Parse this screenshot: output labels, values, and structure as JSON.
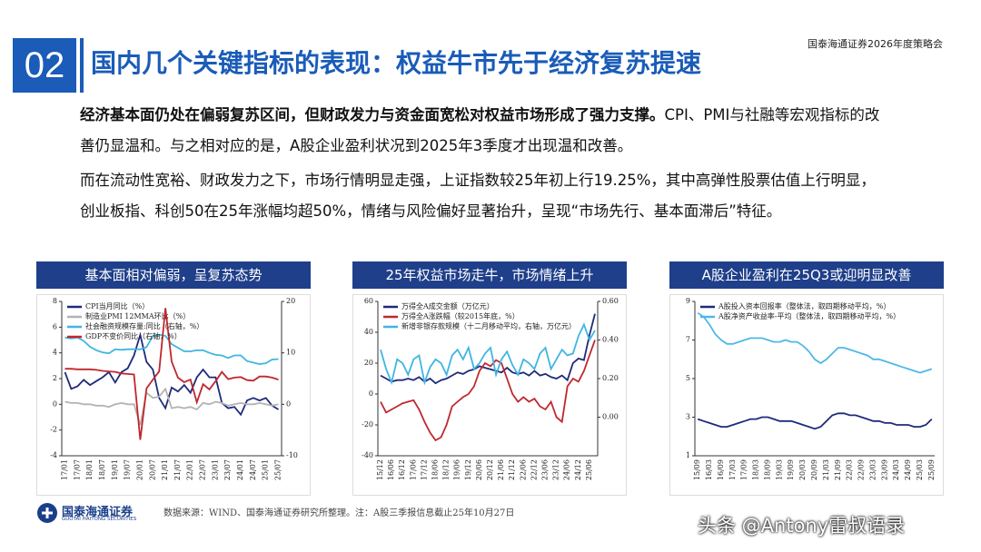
{
  "header": {
    "number": "02",
    "title": "国内几个关键指标的表现：权益牛市先于经济复苏提速",
    "event": "国泰海通证券2026年度策略会"
  },
  "body": {
    "paragraphs": [
      {
        "bold": "经济基本面仍处在偏弱复苏区间，但财政发力与资金面宽松对权益市场形成了强力支撑。",
        "text": "CPI、PMI与社融等宏观指标的改善仍显温和。与之相对应的是，A股企业盈利状况到2025年3季度才出现温和改善。"
      },
      {
        "text": "而在流动性宽裕、财政发力之下，市场行情明显走强，上证指数较25年初上行19.25%，其中高弹性股票估值上行明显，创业板指、科创50在25年涨幅均超50%，情绪与风险偏好显著抬升，呈现“市场先行、基本面滞后”特征。"
      }
    ]
  },
  "chart_data": [
    {
      "type": "line",
      "title": "基本面相对偏弱，呈复苏态势",
      "categories": [
        "17/01",
        null,
        "17/07",
        null,
        "18/01",
        null,
        "18/07",
        null,
        "19/01",
        null,
        "19/07",
        null,
        "20/01",
        null,
        "20/07",
        null,
        "21/01",
        null,
        "21/07",
        null,
        "22/01",
        null,
        "22/07",
        null,
        "23/01",
        null,
        "23/07",
        null,
        "24/01",
        null,
        "24/07",
        null,
        "25/01",
        null,
        "25/07"
      ],
      "series": [
        {
          "name": "CPI当月同比（%）",
          "color": "#1f2a7a",
          "values": [
            2.5,
            1.2,
            1.4,
            1.9,
            1.5,
            1.8,
            2.1,
            2.5,
            1.7,
            2.5,
            2.8,
            3.8,
            5.4,
            3.3,
            2.7,
            0.5,
            -0.3,
            1.3,
            1.0,
            1.5,
            0.9,
            2.1,
            2.7,
            2.1,
            2.1,
            0.1,
            -0.3,
            -0.2,
            -0.8,
            0.3,
            0.5,
            0.3,
            0.5,
            -0.1,
            -0.4
          ]
        },
        {
          "name": "制造业PMI 12MMA环比（%）",
          "color": "#b3b3b3",
          "values": [
            0.2,
            0.1,
            0.1,
            0,
            0,
            -0.1,
            -0.1,
            -0.2,
            0,
            0.1,
            0,
            0,
            -1.6,
            0.9,
            0.5,
            0.6,
            1.2,
            -0.3,
            -0.2,
            -0.3,
            -0.2,
            -0.4,
            0.1,
            0,
            0.2,
            0.1,
            -0.1,
            0,
            0.1,
            0,
            0,
            0.1,
            0,
            -0.1,
            0
          ]
        },
        {
          "name": "社会融资规模存量:同比（右轴，%）",
          "color": "#3fb6e0",
          "axis": "y2",
          "values": [
            13.0,
            12.8,
            13.0,
            12.3,
            11.2,
            10.5,
            10.1,
            9.9,
            10.7,
            10.6,
            10.7,
            10.7,
            10.7,
            11.1,
            13.3,
            13.5,
            13.3,
            11.7,
            11.0,
            10.3,
            10.3,
            10.5,
            10.5,
            10.0,
            9.6,
            9.5,
            9.0,
            9.5,
            9.5,
            8.4,
            8.1,
            7.8,
            8.0,
            8.7,
            8.8
          ]
        },
        {
          "name": "GDP不变价同比（右轴，%）",
          "color": "#c0272d",
          "axis": "y2",
          "values": [
            6.9,
            6.9,
            6.8,
            6.8,
            6.8,
            6.7,
            6.5,
            6.4,
            6.3,
            6.0,
            5.9,
            5.8,
            -6.9,
            3.1,
            4.8,
            6.4,
            18.7,
            8.3,
            5.2,
            4.3,
            4.8,
            0.4,
            3.9,
            2.9,
            4.5,
            6.3,
            4.9,
            5.2,
            5.3,
            4.7,
            4.6,
            5.4,
            5.4,
            5.2,
            4.8
          ]
        }
      ],
      "ylim": [
        -4,
        8
      ],
      "yticks": [
        -4,
        -2,
        0,
        2,
        4,
        6,
        8
      ],
      "y2lim": [
        -10,
        20
      ],
      "y2ticks": [
        -10,
        0,
        10,
        20
      ],
      "grid": false
    },
    {
      "type": "line",
      "title": "25年权益市场走牛，市场情绪上升",
      "categories": [
        "15/12",
        null,
        "16/06",
        null,
        "16/12",
        null,
        "17/06",
        null,
        "17/12",
        null,
        "18/06",
        null,
        "18/12",
        null,
        "19/06",
        null,
        "19/12",
        null,
        "20/06",
        null,
        "20/12",
        null,
        "21/06",
        null,
        "21/12",
        null,
        "22/06",
        null,
        "22/12",
        null,
        "23/06",
        null,
        "23/12",
        null,
        "24/06",
        null,
        "24/12",
        null,
        "25/06",
        null
      ],
      "series": [
        {
          "name": "万得全A成交金额（万亿元）",
          "color": "#1f2a7a",
          "values": [
            12,
            10,
            8,
            9,
            9,
            10,
            9,
            11,
            8,
            10,
            7,
            9,
            10,
            12,
            14,
            13,
            15,
            16,
            18,
            17,
            16,
            15,
            14,
            17,
            14,
            13,
            14,
            12,
            15,
            12,
            13,
            11,
            10,
            12,
            9,
            20,
            23,
            22,
            38,
            52
          ]
        },
        {
          "name": "万得全A涨跌幅（较2015年底，%）",
          "color": "#c0272d",
          "values": [
            -5,
            -12,
            -10,
            -8,
            -6,
            -5,
            -4,
            -10,
            -18,
            -25,
            -30,
            -28,
            -20,
            -8,
            -5,
            -2,
            0,
            5,
            15,
            20,
            18,
            22,
            20,
            10,
            0,
            -5,
            -2,
            -5,
            -3,
            -8,
            -10,
            -5,
            -15,
            -18,
            5,
            10,
            8,
            15,
            25,
            35
          ]
        },
        {
          "name": "新增非银存款规模（十二月移动平均，右轴，万亿元）",
          "color": "#3fb6e0",
          "axis": "y2",
          "values": [
            0.35,
            0.25,
            0.18,
            0.3,
            0.28,
            0.22,
            0.3,
            0.32,
            0.18,
            0.26,
            0.3,
            0.28,
            0.22,
            0.32,
            0.35,
            0.3,
            0.36,
            0.25,
            0.28,
            0.33,
            0.36,
            0.22,
            0.3,
            0.34,
            0.27,
            0.22,
            0.3,
            0.28,
            0.25,
            0.33,
            0.36,
            0.25,
            0.3,
            0.35,
            0.32,
            0.33,
            0.42,
            0.48,
            0.4,
            0.45
          ]
        }
      ],
      "ylim": [
        -40,
        60
      ],
      "yticks": [
        -40,
        -20,
        0,
        20,
        40,
        60
      ],
      "y2lim": [
        -0.2,
        0.6
      ],
      "y2ticks": [
        {
          "value": 0,
          "label": "0.00"
        },
        {
          "value": 0.2,
          "label": "0.20"
        },
        {
          "value": 0.4,
          "label": "0.40"
        },
        {
          "value": 0.6,
          "label": "0.60"
        }
      ],
      "grid": false
    },
    {
      "type": "line",
      "title": "A股企业盈利在25Q3或迎明显改善",
      "categories": [
        "15/09",
        null,
        "16/03",
        null,
        "16/09",
        null,
        "17/03",
        null,
        "17/09",
        null,
        "18/03",
        null,
        "18/09",
        null,
        "19/03",
        null,
        "19/09",
        null,
        "20/03",
        null,
        "20/09",
        null,
        "21/03",
        null,
        "21/09",
        null,
        "22/03",
        null,
        "22/09",
        null,
        "23/03",
        null,
        "23/09",
        null,
        "24/03",
        null,
        "24/09",
        null,
        "25/03",
        null,
        "25/09"
      ],
      "series": [
        {
          "name": "A股投入资本回报率（整体法，取四期移动平均，%）",
          "color": "#1f2a7a",
          "values": [
            2.9,
            2.8,
            2.7,
            2.6,
            2.5,
            2.5,
            2.6,
            2.7,
            2.8,
            2.9,
            2.9,
            3.0,
            3.0,
            2.9,
            2.8,
            2.8,
            2.8,
            2.7,
            2.6,
            2.5,
            2.4,
            2.5,
            2.8,
            3.1,
            3.2,
            3.2,
            3.1,
            3.1,
            3.0,
            2.9,
            2.8,
            2.8,
            2.7,
            2.7,
            2.6,
            2.6,
            2.6,
            2.5,
            2.5,
            2.6,
            2.9
          ]
        },
        {
          "name": "A股净资产收益率-平均（整体法，取四期移动平均，%）",
          "color": "#4fb8e8",
          "values": [
            8.4,
            8.2,
            7.8,
            7.3,
            7.0,
            6.8,
            6.8,
            6.9,
            7.0,
            7.1,
            7.1,
            7.1,
            7.0,
            6.9,
            6.9,
            7.0,
            6.9,
            6.9,
            6.7,
            6.4,
            6.0,
            5.8,
            6.0,
            6.3,
            6.6,
            6.6,
            6.5,
            6.4,
            6.3,
            6.2,
            6.0,
            6.0,
            5.9,
            5.8,
            5.7,
            5.6,
            5.5,
            5.4,
            5.3,
            5.4,
            5.5
          ]
        }
      ],
      "ylim": [
        1,
        9
      ],
      "yticks": [
        1,
        3,
        5,
        7,
        9
      ],
      "grid": false
    }
  ],
  "footer": {
    "logo": "国泰海通证券",
    "logo_en": "GUOTAI HAITONG SECURITIES",
    "source": "数据来源：WIND、国泰海通证券研究所整理。注：A股三季报信息截止25年10月27日",
    "watermark": "头条 @Antony雷叔语录"
  }
}
